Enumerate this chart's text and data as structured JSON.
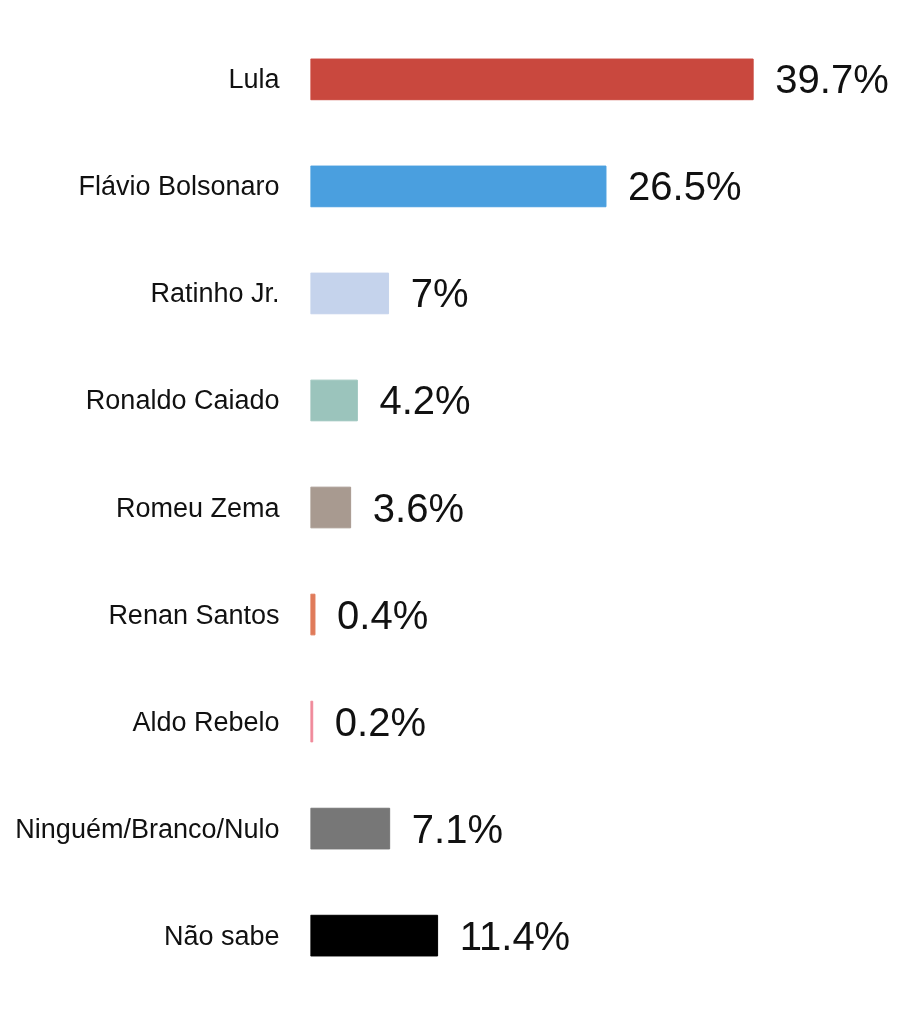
{
  "chart_data": {
    "type": "bar",
    "orientation": "horizontal",
    "categories": [
      "Lula",
      "Flávio Bolsonaro",
      "Ratinho Jr.",
      "Ronaldo Caiado",
      "Romeu Zema",
      "Renan Santos",
      "Aldo Rebelo",
      "Ninguém/Branco/Nulo",
      "Não sabe"
    ],
    "values": [
      39.7,
      26.5,
      7,
      4.2,
      3.6,
      0.4,
      0.2,
      7.1,
      11.4
    ],
    "value_labels": [
      "39.7%",
      "26.5%",
      "7%",
      "4.2%",
      "3.6%",
      "0.4%",
      "0.2%",
      "7.1%",
      "11.4%"
    ],
    "colors": [
      "#c9483e",
      "#4a9fdf",
      "#c5d3ec",
      "#9bc4bc",
      "#a89a90",
      "#e07b5a",
      "#f08a9a",
      "#777777",
      "#000000"
    ]
  }
}
